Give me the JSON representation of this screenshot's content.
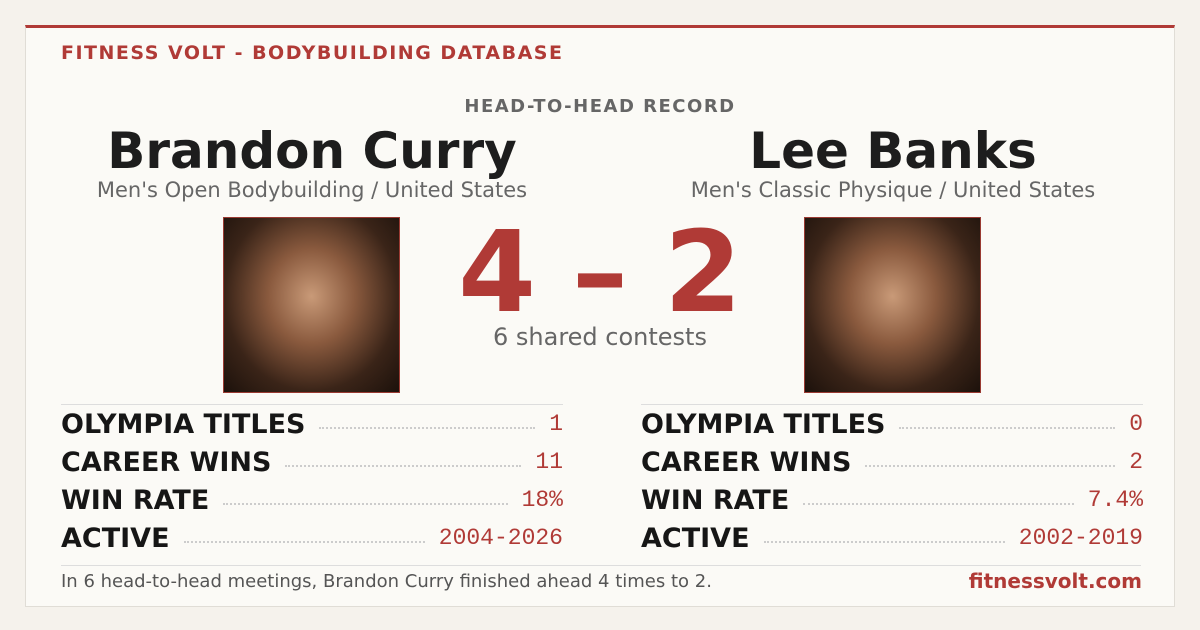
{
  "header": {
    "brand": "FITNESS VOLT - BODYBUILDING DATABASE",
    "subtitle": "HEAD-TO-HEAD RECORD"
  },
  "competitors": [
    {
      "name": "Brandon Curry",
      "division": "Men's Open Bodybuilding / United States",
      "stats": [
        {
          "label": "OLYMPIA TITLES",
          "value": "1"
        },
        {
          "label": "CAREER WINS",
          "value": "11"
        },
        {
          "label": "WIN RATE",
          "value": "18%"
        },
        {
          "label": "ACTIVE",
          "value": "2004-2026"
        }
      ]
    },
    {
      "name": "Lee Banks",
      "division": "Men's Classic Physique / United States",
      "stats": [
        {
          "label": "OLYMPIA TITLES",
          "value": "0"
        },
        {
          "label": "CAREER WINS",
          "value": "2"
        },
        {
          "label": "WIN RATE",
          "value": "7.4%"
        },
        {
          "label": "ACTIVE",
          "value": "2002-2019"
        }
      ]
    }
  ],
  "score": {
    "left": "4",
    "separator": "–",
    "right": "2",
    "caption": "6 shared contests"
  },
  "footer": {
    "text": "In 6 head-to-head meetings, Brandon Curry finished ahead 4 times to 2.",
    "site": "fitnessvolt.com"
  }
}
